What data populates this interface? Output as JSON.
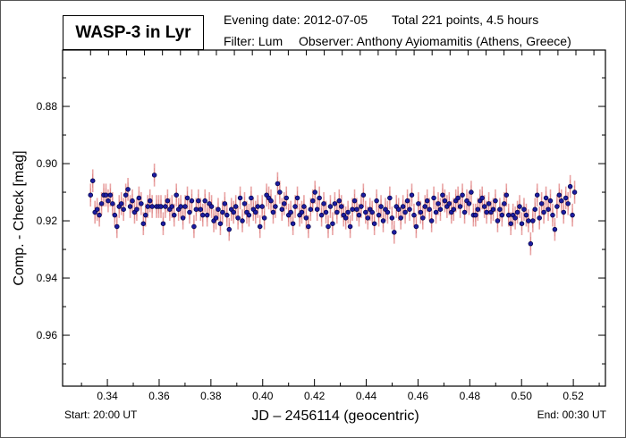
{
  "header": {
    "title": "WASP-3 in Lyr",
    "evening_date": "Evening date: 2012-07-05",
    "total": "Total 221 points, 4.5 hours",
    "filter": "Filter: Lum",
    "observer": "Observer: Anthony Ayiomamitis (Athens, Greece)"
  },
  "footer": {
    "start": "Start: 20:00 UT",
    "end": "End: 00:30 UT"
  },
  "colors": {
    "point": "#1c1ca0",
    "point_edge": "#000040",
    "errorbar": "#e9a3a3",
    "errorbar_core": "#d06060"
  },
  "chart_data": {
    "type": "scatter",
    "title": "WASP-3 in Lyr",
    "xlabel": "JD – 2456114  (geocentric)",
    "ylabel": "Comp. - Check [mag]",
    "xlim": [
      0.3227,
      0.5324
    ],
    "ylim": [
      0.9778,
      0.8603
    ],
    "y_inverted": true,
    "x_ticks": [
      "0.34",
      "0.36",
      "0.38",
      "0.40",
      "0.42",
      "0.44",
      "0.46",
      "0.48",
      "0.50",
      "0.52"
    ],
    "y_ticks": [
      "0.88",
      "0.90",
      "0.92",
      "0.94",
      "0.96"
    ],
    "x_start": 0.3335,
    "x_end": 0.5205,
    "error": 0.004,
    "top_axis_tick_interval_minutes": 10,
    "y": [
      0.911,
      0.906,
      0.917,
      0.916,
      0.918,
      0.914,
      0.911,
      0.911,
      0.913,
      0.911,
      0.914,
      0.918,
      0.922,
      0.915,
      0.914,
      0.916,
      0.911,
      0.909,
      0.915,
      0.913,
      0.917,
      0.916,
      0.912,
      0.914,
      0.921,
      0.918,
      0.915,
      0.913,
      0.915,
      0.904,
      0.915,
      0.915,
      0.915,
      0.921,
      0.915,
      0.913,
      0.916,
      0.915,
      0.918,
      0.911,
      0.916,
      0.915,
      0.919,
      0.915,
      0.912,
      0.917,
      0.913,
      0.922,
      0.916,
      0.913,
      0.916,
      0.918,
      0.913,
      0.918,
      0.914,
      0.915,
      0.92,
      0.919,
      0.916,
      0.921,
      0.917,
      0.914,
      0.918,
      0.923,
      0.916,
      0.917,
      0.915,
      0.919,
      0.912,
      0.92,
      0.914,
      0.917,
      0.918,
      0.912,
      0.916,
      0.917,
      0.915,
      0.922,
      0.915,
      0.919,
      0.911,
      0.912,
      0.913,
      0.917,
      0.915,
      0.907,
      0.91,
      0.916,
      0.914,
      0.912,
      0.918,
      0.917,
      0.921,
      0.915,
      0.912,
      0.918,
      0.917,
      0.915,
      0.919,
      0.922,
      0.916,
      0.913,
      0.91,
      0.916,
      0.912,
      0.918,
      0.914,
      0.917,
      0.922,
      0.915,
      0.921,
      0.914,
      0.917,
      0.913,
      0.915,
      0.918,
      0.919,
      0.917,
      0.922,
      0.916,
      0.913,
      0.916,
      0.918,
      0.915,
      0.911,
      0.917,
      0.919,
      0.916,
      0.917,
      0.921,
      0.913,
      0.918,
      0.915,
      0.92,
      0.916,
      0.917,
      0.912,
      0.919,
      0.924,
      0.915,
      0.916,
      0.919,
      0.915,
      0.917,
      0.913,
      0.916,
      0.911,
      0.918,
      0.922,
      0.914,
      0.917,
      0.919,
      0.915,
      0.913,
      0.916,
      0.92,
      0.912,
      0.917,
      0.914,
      0.916,
      0.911,
      0.913,
      0.915,
      0.914,
      0.917,
      0.916,
      0.913,
      0.912,
      0.915,
      0.911,
      0.917,
      0.913,
      0.914,
      0.91,
      0.918,
      0.918,
      0.916,
      0.913,
      0.912,
      0.915,
      0.917,
      0.914,
      0.917,
      0.916,
      0.913,
      0.92,
      0.916,
      0.918,
      0.914,
      0.911,
      0.918,
      0.921,
      0.918,
      0.919,
      0.917,
      0.915,
      0.921,
      0.916,
      0.918,
      0.92,
      0.928,
      0.92,
      0.916,
      0.911,
      0.919,
      0.914,
      0.917,
      0.912,
      0.916,
      0.913,
      0.918,
      0.923,
      0.915,
      0.911,
      0.913,
      0.917,
      0.912,
      0.914,
      0.908,
      0.918,
      0.91
    ]
  }
}
